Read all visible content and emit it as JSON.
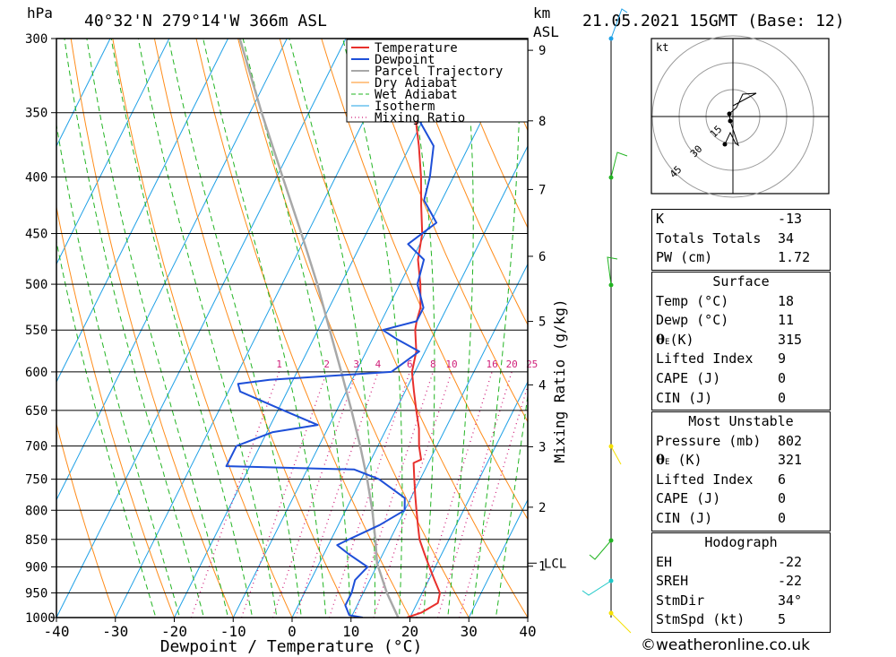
{
  "header": {
    "pressure_unit": "hPa",
    "location": "40°32'N  279°14'W  366m  ASL",
    "height_unit_line1": "km",
    "height_unit_line2": "ASL",
    "datetime": "21.05.2021  15GMT  (Base: 12)"
  },
  "chart_data": {
    "type": "skew-t",
    "xlabel": "Dewpoint / Temperature (°C)",
    "x_ticks": [
      -40,
      -30,
      -20,
      -10,
      0,
      10,
      20,
      30,
      40
    ],
    "xlim": [
      -40,
      40
    ],
    "ylim": [
      1000,
      300
    ],
    "y_ticks": [
      300,
      350,
      400,
      450,
      500,
      550,
      600,
      650,
      700,
      750,
      800,
      850,
      900,
      950,
      1000
    ],
    "height_ticks": [
      1,
      2,
      3,
      4,
      5,
      6,
      7,
      8,
      9
    ],
    "lcl_label": "LCL",
    "lcl_pressure": 893,
    "mixing_ratio_label": "Mixing Ratio (g/kg)",
    "mixing_ratio_values": [
      1,
      2,
      3,
      4,
      6,
      8,
      10,
      16,
      20,
      25
    ],
    "legend": [
      "Temperature",
      "Dewpoint",
      "Parcel Trajectory",
      "Dry Adiabat",
      "Wet Adiabat",
      "Isotherm",
      "Mixing Ratio"
    ],
    "colors": {
      "temperature": "#e8302c",
      "dewpoint": "#1e4fd8",
      "parcel": "#a8a8a8",
      "dry": "#ff8c1a",
      "wet": "#22b422",
      "iso": "#1ea0e6",
      "mix": "#d0207a"
    },
    "series": [
      {
        "name": "Temperature",
        "points": [
          [
            1000,
            19.5
          ],
          [
            990,
            21.5
          ],
          [
            970,
            23.5
          ],
          [
            950,
            23
          ],
          [
            925,
            21
          ],
          [
            900,
            19
          ],
          [
            875,
            17
          ],
          [
            850,
            15
          ],
          [
            825,
            13.5
          ],
          [
            800,
            12
          ],
          [
            775,
            10.5
          ],
          [
            750,
            9
          ],
          [
            725,
            7.5
          ],
          [
            720,
            8.5
          ],
          [
            700,
            7
          ],
          [
            675,
            5.5
          ],
          [
            650,
            3.5
          ],
          [
            625,
            1.5
          ],
          [
            600,
            -0.5
          ],
          [
            575,
            -1.5
          ],
          [
            550,
            -3.5
          ],
          [
            540,
            -4
          ],
          [
            525,
            -4.5
          ],
          [
            500,
            -6.5
          ],
          [
            475,
            -9
          ],
          [
            450,
            -10.5
          ],
          [
            425,
            -13
          ],
          [
            400,
            -15.5
          ],
          [
            375,
            -18.5
          ],
          [
            350,
            -22
          ],
          [
            325,
            -24.5
          ],
          [
            300,
            -28
          ]
        ]
      },
      {
        "name": "Dewpoint",
        "points": [
          [
            1000,
            12
          ],
          [
            995,
            9.5
          ],
          [
            975,
            8
          ],
          [
            950,
            8
          ],
          [
            925,
            7.5
          ],
          [
            900,
            8.5
          ],
          [
            875,
            4
          ],
          [
            860,
            1.5
          ],
          [
            850,
            3
          ],
          [
            825,
            7
          ],
          [
            800,
            10
          ],
          [
            780,
            9
          ],
          [
            750,
            3
          ],
          [
            735,
            -2
          ],
          [
            730,
            -24
          ],
          [
            700,
            -24
          ],
          [
            680,
            -19
          ],
          [
            670,
            -12
          ],
          [
            650,
            -19
          ],
          [
            625,
            -28
          ],
          [
            615,
            -29
          ],
          [
            610,
            -24
          ],
          [
            600,
            -4
          ],
          [
            575,
            -1
          ],
          [
            560,
            -6
          ],
          [
            550,
            -9
          ],
          [
            540,
            -4
          ],
          [
            525,
            -4
          ],
          [
            500,
            -7
          ],
          [
            475,
            -8
          ],
          [
            460,
            -12
          ],
          [
            440,
            -9
          ],
          [
            420,
            -13
          ],
          [
            400,
            -14
          ],
          [
            375,
            -16
          ],
          [
            350,
            -22
          ],
          [
            325,
            -29
          ],
          [
            310,
            -34
          ],
          [
            300,
            -38
          ]
        ]
      },
      {
        "name": "Parcel Trajectory",
        "points": [
          [
            1000,
            18
          ],
          [
            950,
            14
          ],
          [
            893,
            9.8
          ],
          [
            850,
            7.5
          ],
          [
            800,
            4.5
          ],
          [
            750,
            1
          ],
          [
            700,
            -3
          ],
          [
            650,
            -7.5
          ],
          [
            600,
            -12.5
          ],
          [
            550,
            -18
          ],
          [
            500,
            -24
          ],
          [
            450,
            -31
          ],
          [
            400,
            -39
          ],
          [
            350,
            -48
          ],
          [
            300,
            -58
          ]
        ]
      }
    ]
  },
  "hodograph": {
    "unit": "kt",
    "rings": [
      "15",
      "30",
      "45"
    ]
  },
  "indices": {
    "k_label": "K",
    "k_value": "-13",
    "tt_label": "Totals Totals",
    "tt_value": "34",
    "pw_label": "PW (cm)",
    "pw_value": "1.72"
  },
  "surface": {
    "title": "Surface",
    "temp_label": "Temp (°C)",
    "temp_value": "18",
    "dewp_label": "Dewp (°C)",
    "dewp_value": "11",
    "theta_label": "(K)",
    "theta_value": "315",
    "li_label": "Lifted Index",
    "li_value": "9",
    "cape_label": "CAPE (J)",
    "cape_value": "0",
    "cin_label": "CIN (J)",
    "cin_value": "0"
  },
  "most_unstable": {
    "title": "Most Unstable",
    "pressure_label": "Pressure (mb)",
    "pressure_value": "802",
    "theta_label": "(K)",
    "theta_value": "321",
    "li_label": "Lifted Index",
    "li_value": "6",
    "cape_label": "CAPE (J)",
    "cape_value": "0",
    "cin_label": "CIN (J)",
    "cin_value": "0"
  },
  "hodograph_stats": {
    "title": "Hodograph",
    "eh_label": "EH",
    "eh_value": "-22",
    "sreh_label": "SREH",
    "sreh_value": "-22",
    "stmdir_label": "StmDir",
    "stmdir_value": "34°",
    "stmspd_label": "StmSpd (kt)",
    "stmspd_value": "5"
  },
  "footer": {
    "copyright": "©weatheronline.co.uk"
  }
}
